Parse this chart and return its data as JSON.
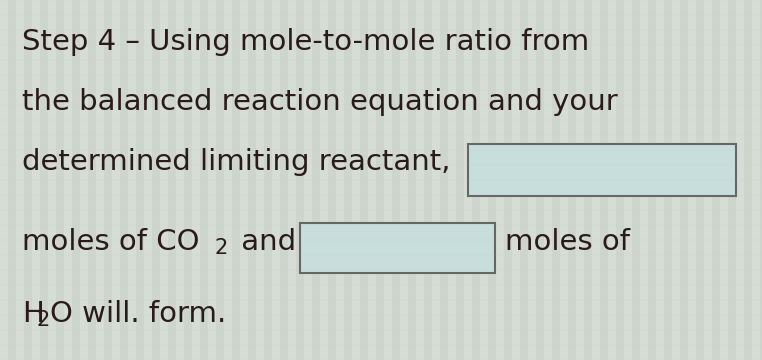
{
  "bg_color": "#d4d8ce",
  "text_color": "#2a1a1a",
  "box_fill_color": "#c8dedd",
  "box_edge_color": "#666666",
  "line1": "Step 4 – Using mole-to-mole ratio from",
  "line2": "the balanced reaction equation and your",
  "line3_pre": "determined limiting reactant,",
  "line4_co2_pre": "moles of CO",
  "line4_sub2_co2": "2",
  "line4_and": " and",
  "line4_molesof": "moles of",
  "line5_h": "H",
  "line5_sub2": "2",
  "line5_rest": "O will. form.",
  "fontsize": 21,
  "fontfamily": "DejaVu Sans",
  "stripe_color_light": "#dce8e4",
  "stripe_color_dark": "#c4d0cc"
}
